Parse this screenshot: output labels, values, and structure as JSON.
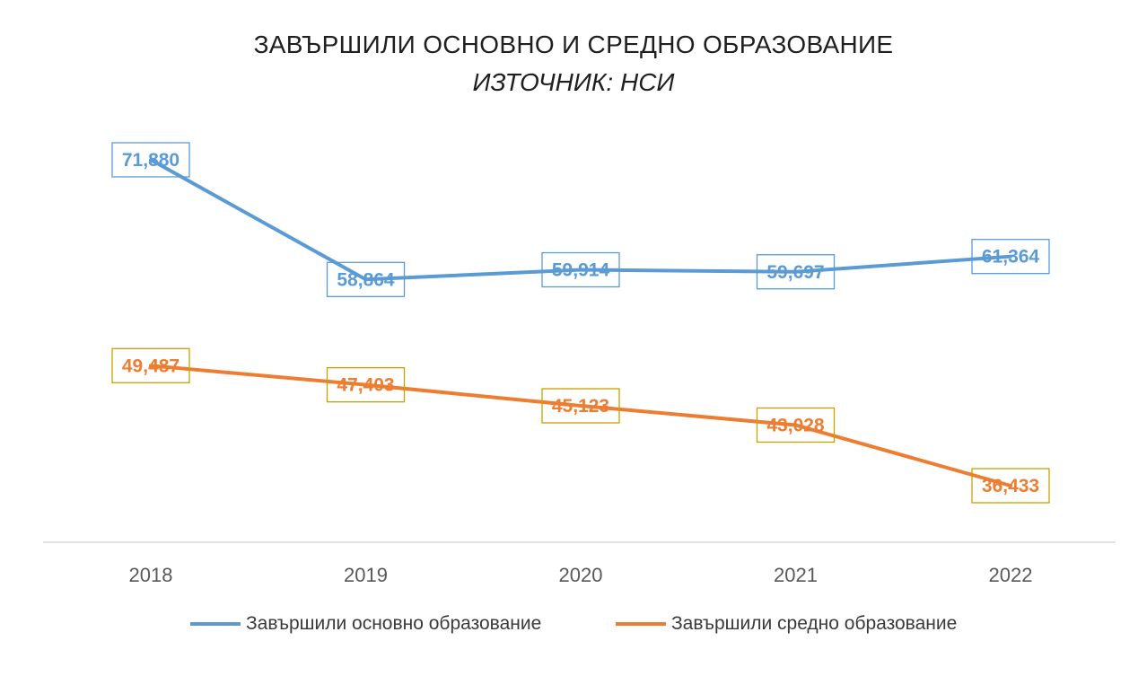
{
  "chart_data": {
    "type": "line",
    "title": "ЗАВЪРШИЛИ ОСНОВНО И СРЕДНО ОБРАЗОВАНИЕ",
    "subtitle": "ИЗТОЧНИК: НСИ",
    "categories": [
      "2018",
      "2019",
      "2020",
      "2021",
      "2022"
    ],
    "series": [
      {
        "name": "Завършили основно образование",
        "values": [
          71880,
          58864,
          59914,
          59697,
          61364
        ],
        "labels": [
          "71,880",
          "58,864",
          "59,914",
          "59,697",
          "61,364"
        ],
        "color": "#5b9bd5",
        "label_border_color": "#5b9bd5"
      },
      {
        "name": "Завършили средно образование",
        "values": [
          49487,
          47403,
          45123,
          43028,
          36433
        ],
        "labels": [
          "49,487",
          "47,403",
          "45,123",
          "43,028",
          "36,433"
        ],
        "color": "#ed7d31",
        "label_border_color": "#c9a000"
      }
    ],
    "data_labels": true,
    "legend_position": "bottom",
    "grid": false
  }
}
